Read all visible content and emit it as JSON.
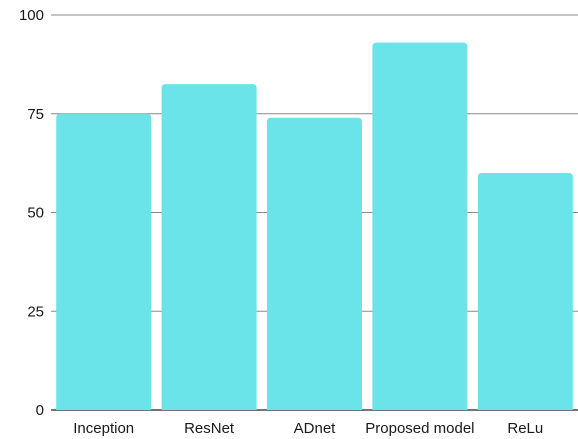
{
  "chart_data": {
    "type": "bar",
    "categories": [
      "Inception",
      "ResNet",
      "ADnet",
      "Proposed model",
      "ReLu"
    ],
    "values": [
      75,
      82.5,
      74,
      93,
      60
    ],
    "ylim": [
      0,
      100
    ],
    "yticks": [
      0,
      25,
      50,
      75,
      100
    ],
    "grid": true,
    "legend": "none",
    "bar_color": "#6ae4e8",
    "grid_color": "#8a8a8a"
  }
}
